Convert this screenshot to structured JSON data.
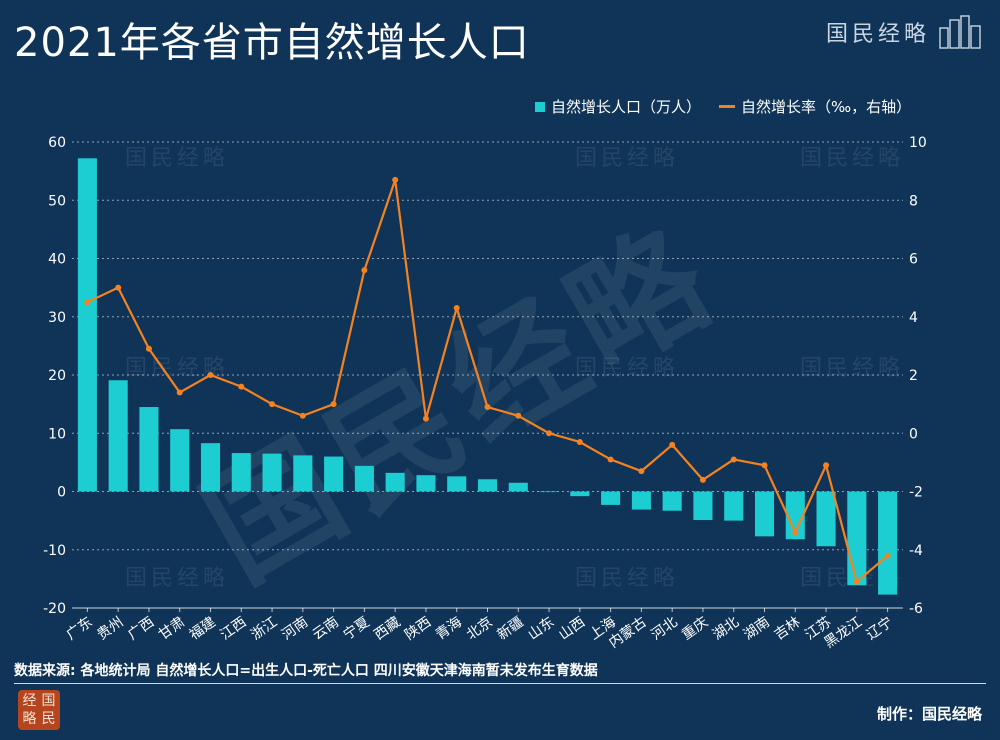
{
  "header": {
    "title": "2021年各省市自然增长人口"
  },
  "brand": {
    "name": "国民经略",
    "icon": "city-skyline-icon"
  },
  "watermark": {
    "text": "国民经略"
  },
  "legend": {
    "bar_label": "自然增长人口（万人）",
    "line_label": "自然增长率（‰，右轴）"
  },
  "colors": {
    "background": "#0f3457",
    "bar": "#1ccdd2",
    "line": "#f58220",
    "grid": "#ffffff"
  },
  "footer": {
    "source": "数据来源: 各地统计局 自然增长人口=出生人口-死亡人口  四川安徽天津海南暂未发布生育数据",
    "credit": "制作：国民经略",
    "seal_chars": [
      "经",
      "国",
      "略",
      "民"
    ]
  },
  "chart_data": {
    "type": "bar",
    "categories": [
      "广东",
      "贵州",
      "广西",
      "甘肃",
      "福建",
      "江西",
      "浙江",
      "河南",
      "云南",
      "宁夏",
      "西藏",
      "陕西",
      "青海",
      "北京",
      "新疆",
      "山东",
      "山西",
      "上海",
      "内蒙古",
      "河北",
      "重庆",
      "湖北",
      "湖南",
      "吉林",
      "江苏",
      "黑龙江",
      "辽宁"
    ],
    "series": [
      {
        "name": "自然增长人口（万人）",
        "type": "bar",
        "axis": "left",
        "values": [
          57.2,
          19.1,
          14.5,
          10.7,
          8.3,
          6.6,
          6.5,
          6.2,
          6.0,
          4.4,
          3.2,
          2.8,
          2.6,
          2.1,
          1.5,
          0.0,
          -0.8,
          -2.3,
          -3.1,
          -3.3,
          -4.9,
          -5.0,
          -7.7,
          -8.2,
          -9.4,
          -16.1,
          -17.7
        ]
      },
      {
        "name": "自然增长率（‰，右轴）",
        "type": "line",
        "axis": "right",
        "values": [
          4.5,
          5.0,
          2.9,
          1.4,
          2.0,
          1.6,
          1.0,
          0.6,
          1.0,
          5.6,
          8.7,
          0.5,
          4.3,
          0.9,
          0.6,
          0.0,
          -0.3,
          -0.9,
          -1.3,
          -0.4,
          -1.6,
          -0.9,
          -1.1,
          -3.4,
          -1.1,
          -5.1,
          -4.2
        ]
      }
    ],
    "yticks_left": [
      60,
      50,
      40,
      30,
      20,
      10,
      0,
      -10,
      -20
    ],
    "yticks_right": [
      10,
      8,
      6,
      4,
      2,
      0,
      -2,
      -4,
      -6
    ],
    "ylim_left": [
      -20,
      60
    ],
    "ylim_right": [
      -6,
      10
    ],
    "grid": true,
    "legend_position": "top-right"
  }
}
